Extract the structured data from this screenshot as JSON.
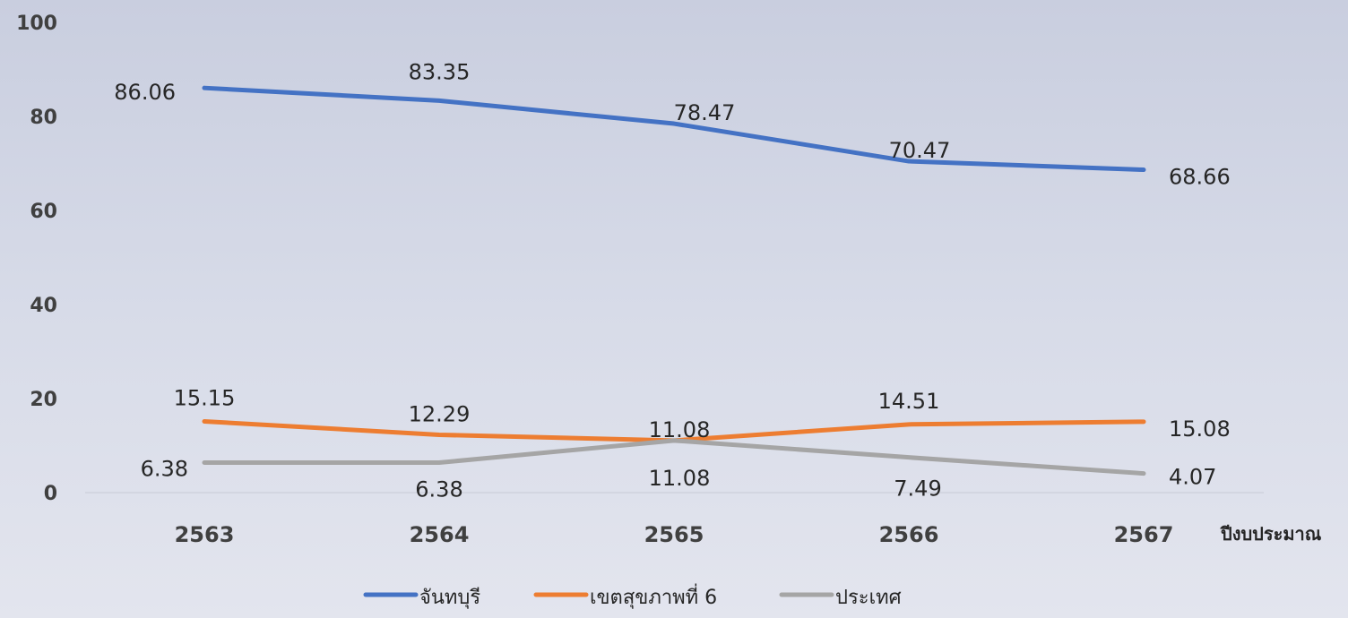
{
  "chart_data": {
    "type": "line",
    "title": "",
    "xlabel": "ปีงบประมาณ",
    "ylabel": "",
    "ylim": [
      0,
      100
    ],
    "yticks": [
      0,
      20,
      40,
      60,
      80,
      100
    ],
    "categories": [
      "2563",
      "2564",
      "2565",
      "2566",
      "2567"
    ],
    "grid": false,
    "legend_position": "bottom",
    "series": [
      {
        "name": "จันทบุรี",
        "color": "#4472c4",
        "values": [
          86.06,
          83.35,
          78.47,
          70.47,
          68.66
        ],
        "labels": [
          "86.06",
          "83.35",
          "78.47",
          "70.47",
          "68.66"
        ]
      },
      {
        "name": "เขตสุขภาพที่ 6",
        "color": "#ed7d31",
        "values": [
          15.15,
          12.29,
          11.08,
          14.51,
          15.08
        ],
        "labels": [
          "15.15",
          "12.29",
          "11.08",
          "14.51",
          "15.08"
        ]
      },
      {
        "name": "ประเทศ",
        "color": "#a5a5a5",
        "values": [
          6.38,
          6.38,
          11.08,
          7.49,
          4.07
        ],
        "labels": [
          "6.38",
          "6.38",
          "11.08",
          "7.49",
          "4.07"
        ]
      }
    ]
  }
}
